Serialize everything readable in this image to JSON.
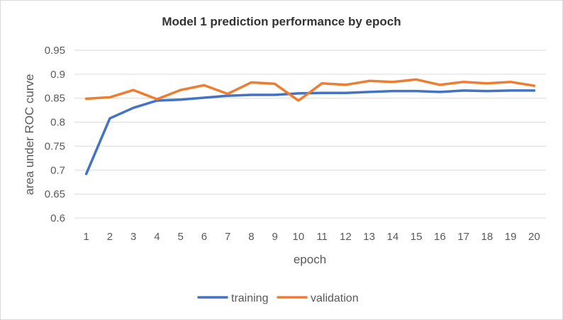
{
  "chart_data": {
    "type": "line",
    "title": "Model 1 prediction performance by epoch",
    "xlabel": "epoch",
    "ylabel": "area under ROC curve",
    "x": [
      1,
      2,
      3,
      4,
      5,
      6,
      7,
      8,
      9,
      10,
      11,
      12,
      13,
      14,
      15,
      16,
      17,
      18,
      19,
      20
    ],
    "ylim": [
      0.6,
      0.95
    ],
    "yticks": [
      "0.6",
      "0.65",
      "0.7",
      "0.75",
      "0.8",
      "0.85",
      "0.9",
      "0.95"
    ],
    "grid": true,
    "legend_position": "bottom",
    "series": [
      {
        "name": "training",
        "color": "#4472C4",
        "values": [
          0.692,
          0.808,
          0.83,
          0.845,
          0.847,
          0.851,
          0.855,
          0.857,
          0.857,
          0.86,
          0.861,
          0.861,
          0.863,
          0.865,
          0.865,
          0.863,
          0.866,
          0.865,
          0.866,
          0.866
        ]
      },
      {
        "name": "validation",
        "color": "#ED7D31",
        "values": [
          0.849,
          0.852,
          0.867,
          0.848,
          0.867,
          0.877,
          0.859,
          0.883,
          0.88,
          0.845,
          0.881,
          0.878,
          0.886,
          0.884,
          0.889,
          0.878,
          0.884,
          0.881,
          0.884,
          0.876
        ]
      }
    ]
  }
}
